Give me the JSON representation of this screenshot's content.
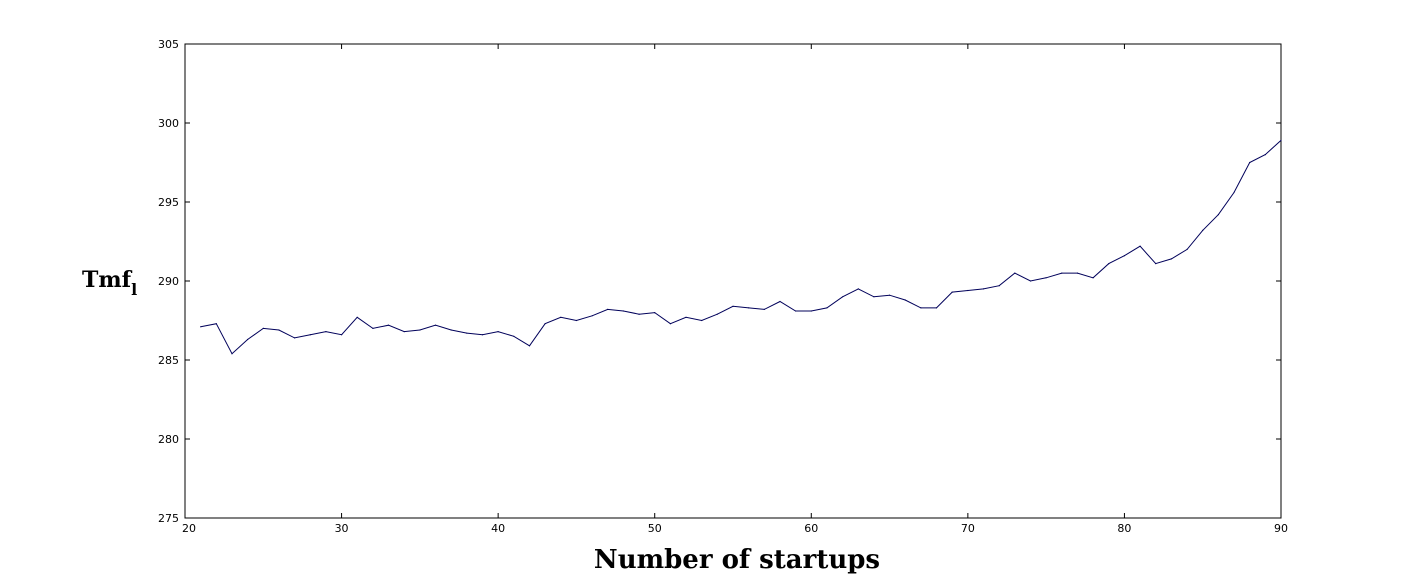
{
  "chart_data": {
    "type": "line",
    "title": "",
    "xlabel": "Number of startups",
    "ylabel": {
      "main": "Tmf",
      "subscript": "l"
    },
    "xlim": [
      20,
      90
    ],
    "ylim": [
      275,
      305
    ],
    "xticks": [
      20,
      30,
      40,
      50,
      60,
      70,
      80,
      90
    ],
    "yticks": [
      275,
      280,
      285,
      290,
      295,
      300,
      305
    ],
    "xtick_labels": [
      "20",
      "30",
      "40",
      "50",
      "60",
      "70",
      "80",
      "90"
    ],
    "ytick_labels": [
      "275",
      "280",
      "285",
      "290",
      "295",
      "300",
      "305"
    ],
    "grid": false,
    "line_color": "#00005a",
    "x": [
      21,
      22,
      23,
      24,
      25,
      26,
      27,
      28,
      29,
      30,
      31,
      32,
      33,
      34,
      35,
      36,
      37,
      38,
      39,
      40,
      41,
      42,
      43,
      44,
      45,
      46,
      47,
      48,
      49,
      50,
      51,
      52,
      53,
      54,
      55,
      56,
      57,
      58,
      59,
      60,
      61,
      62,
      63,
      64,
      65,
      66,
      67,
      68,
      69,
      70,
      71,
      72,
      73,
      74,
      75,
      76,
      77,
      78,
      79,
      80,
      81,
      82,
      83,
      84,
      85,
      86,
      87,
      88,
      89,
      90
    ],
    "y": [
      287.1,
      287.3,
      285.4,
      286.3,
      287.0,
      286.9,
      286.4,
      286.6,
      286.8,
      286.6,
      287.7,
      287.0,
      287.2,
      286.8,
      286.9,
      287.2,
      286.9,
      286.7,
      286.6,
      286.8,
      286.5,
      285.9,
      287.3,
      287.7,
      287.5,
      287.8,
      288.2,
      288.1,
      287.9,
      288.0,
      287.3,
      287.7,
      287.5,
      287.9,
      288.4,
      288.3,
      288.2,
      288.7,
      288.1,
      288.1,
      288.3,
      289.0,
      289.5,
      289.0,
      289.1,
      288.8,
      288.3,
      288.3,
      289.3,
      289.4,
      289.5,
      289.7,
      290.5,
      290.0,
      290.2,
      290.5,
      290.5,
      290.2,
      291.1,
      291.6,
      292.2,
      291.1,
      291.4,
      292.0,
      293.2,
      294.2,
      295.6,
      297.5,
      298.0,
      298.9
    ]
  }
}
